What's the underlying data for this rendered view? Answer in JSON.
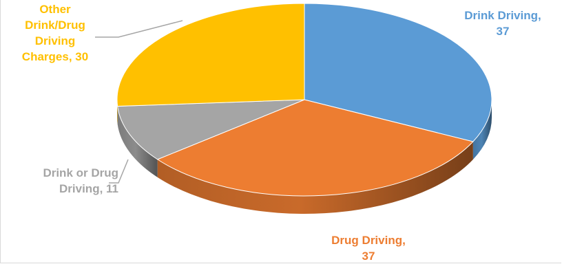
{
  "chart_data": {
    "type": "pie",
    "style": "3d",
    "slices": [
      {
        "category": "Drink Driving",
        "value": 37,
        "color": "#5b9bd5",
        "label_text": "Drink Driving,\n37"
      },
      {
        "category": "Drug Driving",
        "value": 37,
        "color": "#ed7d31",
        "label_text": "Drug Driving,\n37"
      },
      {
        "category": "Drink or Drug Driving",
        "value": 11,
        "color": "#a5a5a5",
        "label_text": "Drink or Drug\nDriving, 11"
      },
      {
        "category": "Other Drink/Drug Driving Charges",
        "value": 30,
        "color": "#ffc000",
        "label_text": "Other\nDrink/Drug\nDriving\nCharges, 30"
      }
    ],
    "legend": "none",
    "data_labels": "category, value"
  }
}
